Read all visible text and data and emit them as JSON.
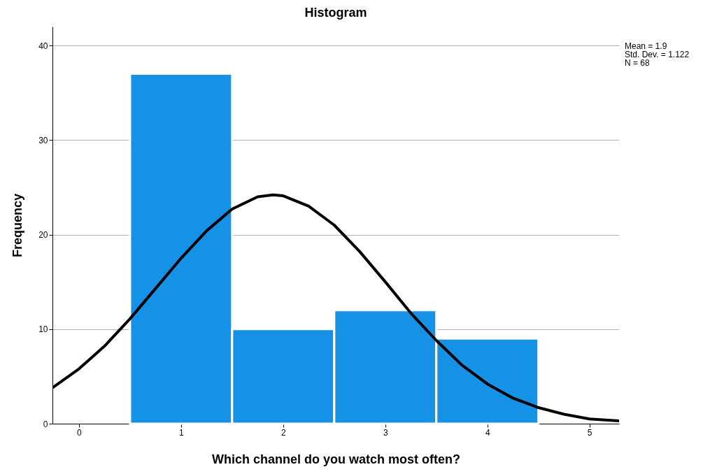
{
  "chart_data": {
    "type": "histogram",
    "title": "Histogram",
    "xlabel": "Which channel do you watch most often?",
    "ylabel": "Frequency",
    "bins": [
      0.5,
      1.5,
      2.5,
      3.5,
      4.5
    ],
    "values": [
      37,
      10,
      12,
      9
    ],
    "color": "#1591e6",
    "series": [
      {
        "type": "line",
        "color": "#000000",
        "x": [
          -0.26,
          0,
          0.25,
          0.5,
          0.75,
          1.0,
          1.25,
          1.5,
          1.75,
          1.9,
          2.0,
          2.25,
          2.5,
          2.75,
          3.0,
          3.25,
          3.5,
          3.75,
          4.0,
          4.25,
          4.5,
          4.75,
          5.0,
          5.29
        ],
        "values": [
          3.8,
          5.8,
          8.2,
          11.1,
          14.3,
          17.5,
          20.4,
          22.7,
          24.0,
          24.2,
          24.1,
          23.0,
          21.0,
          18.2,
          15.0,
          11.7,
          8.8,
          6.2,
          4.2,
          2.7,
          1.7,
          1.0,
          0.5,
          0.3
        ]
      }
    ],
    "xlim": [
      -0.26,
      5.29
    ],
    "xticks": [
      0,
      1,
      2,
      3,
      4,
      5
    ],
    "ylim": [
      0,
      42
    ],
    "yticks": [
      0,
      10,
      20,
      30,
      40
    ],
    "grid": "y",
    "annotations": [
      "Mean = 1.9",
      "Std. Dev. = 1.122",
      "N = 68"
    ]
  }
}
